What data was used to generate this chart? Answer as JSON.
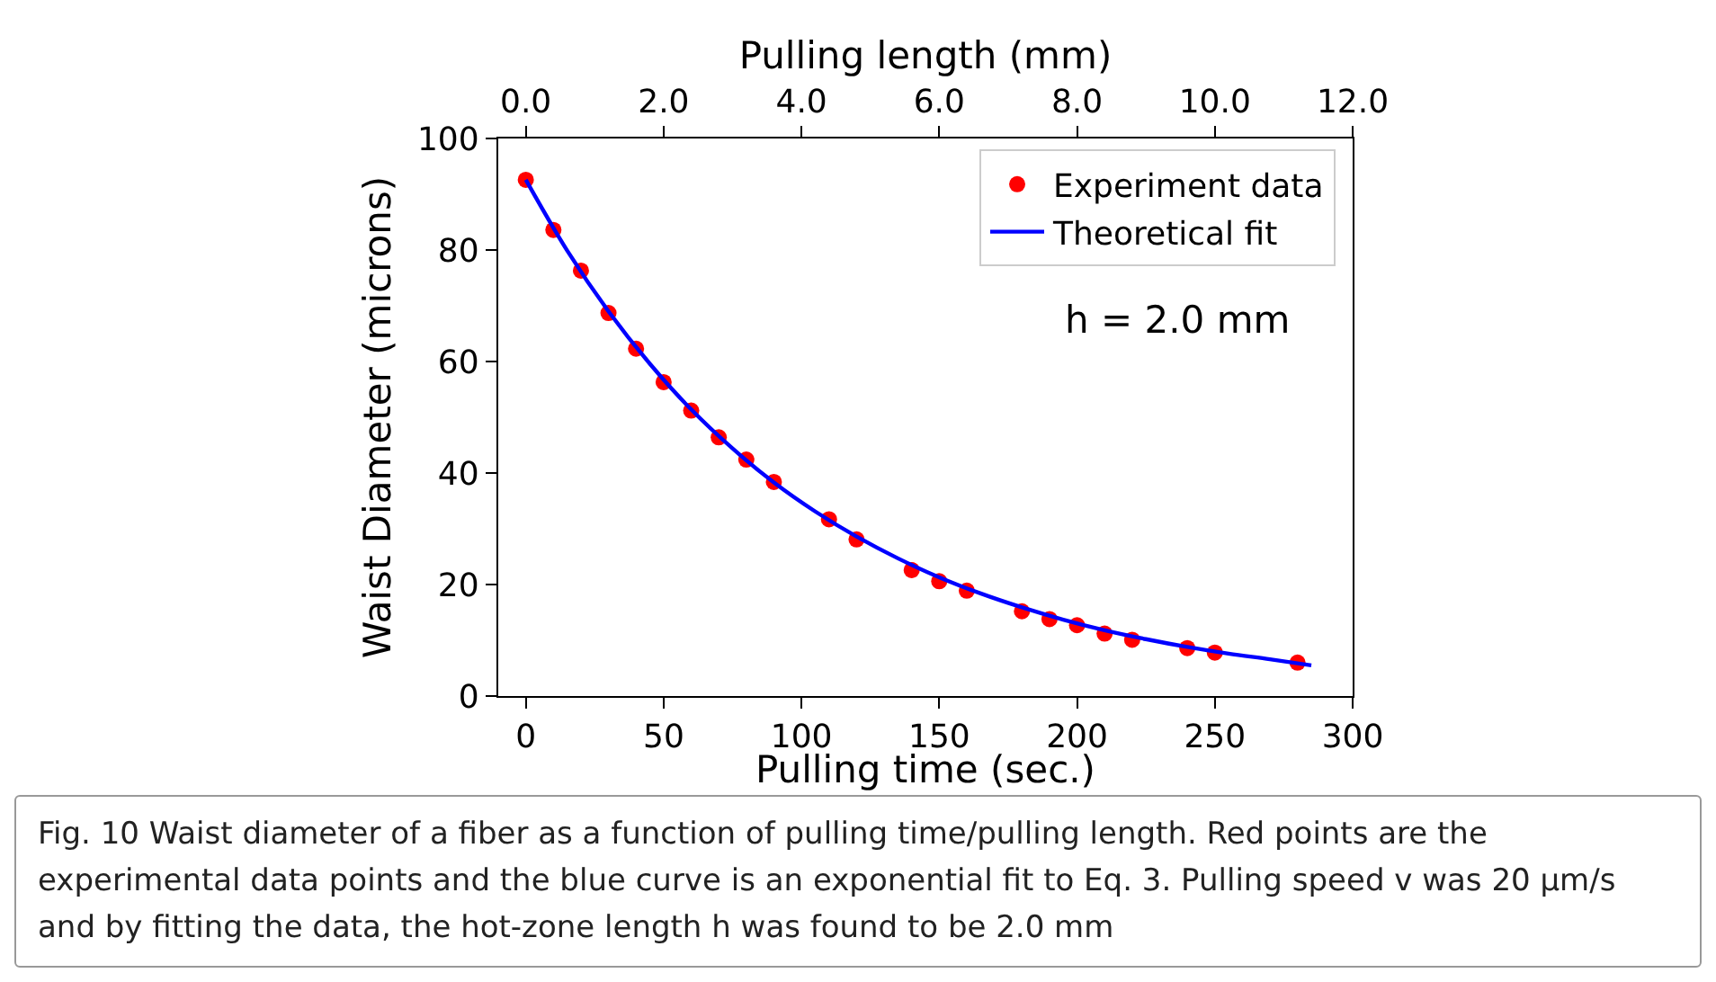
{
  "chart_data": {
    "type": "scatter",
    "xlabel": "Pulling time (sec.)",
    "ylabel": "Waist Diameter (microns)",
    "x2label": "Pulling length (mm)",
    "xlim": [
      -10,
      300
    ],
    "xticks": [
      0,
      50,
      100,
      150,
      200,
      250,
      300
    ],
    "x2lim": [
      -0.4,
      12
    ],
    "x2ticks": [
      {
        "value": 0,
        "label": "0.0"
      },
      {
        "value": 2,
        "label": "2.0"
      },
      {
        "value": 4,
        "label": "4.0"
      },
      {
        "value": 6,
        "label": "6.0"
      },
      {
        "value": 8,
        "label": "8.0"
      },
      {
        "value": 10,
        "label": "10.0"
      },
      {
        "value": 12,
        "label": "12.0"
      }
    ],
    "ylim": [
      0,
      100
    ],
    "yticks": [
      0,
      20,
      40,
      60,
      80,
      100
    ],
    "grid": false,
    "legend": "top right",
    "line_style": "solid",
    "series": [
      {
        "name": "Experiment data",
        "marker": "circle",
        "color": "#ff0000",
        "x": [
          0,
          10,
          20,
          30,
          40,
          50,
          60,
          70,
          80,
          90,
          110,
          120,
          140,
          150,
          160,
          180,
          190,
          200,
          210,
          220,
          240,
          250,
          280
        ],
        "values": [
          92.6,
          83.6,
          76.3,
          68.7,
          62.3,
          56.3,
          51.2,
          46.4,
          42.4,
          38.4,
          31.7,
          28.1,
          22.6,
          20.6,
          18.9,
          15.2,
          13.8,
          12.7,
          11.2,
          10.1,
          8.6,
          7.8,
          6.0
        ]
      },
      {
        "name": "Theoretical fit",
        "type": "line",
        "marker": "none",
        "color": "#0000ff",
        "x": [
          0,
          15,
          30,
          45,
          60,
          75,
          90,
          105,
          120,
          135,
          150,
          165,
          180,
          195,
          210,
          225,
          240,
          255,
          270,
          285
        ],
        "values": [
          92.6,
          79.9,
          69.0,
          59.6,
          51.4,
          44.4,
          38.3,
          33.1,
          28.6,
          24.7,
          21.3,
          18.4,
          15.9,
          13.7,
          11.8,
          10.2,
          8.8,
          7.6,
          6.6,
          5.5
        ]
      }
    ],
    "annotations": [
      "h = 2.0 mm",
      "Fig. 10  Waist diameter of a fiber as a function of pulling time/pulling length. Red points are the experimental data points and the blue curve is an exponential fit to Eq. 3. Pulling speed v was 20 μm/s and by fitting the data, the hot-zone length h was found to be 2.0 mm"
    ]
  }
}
